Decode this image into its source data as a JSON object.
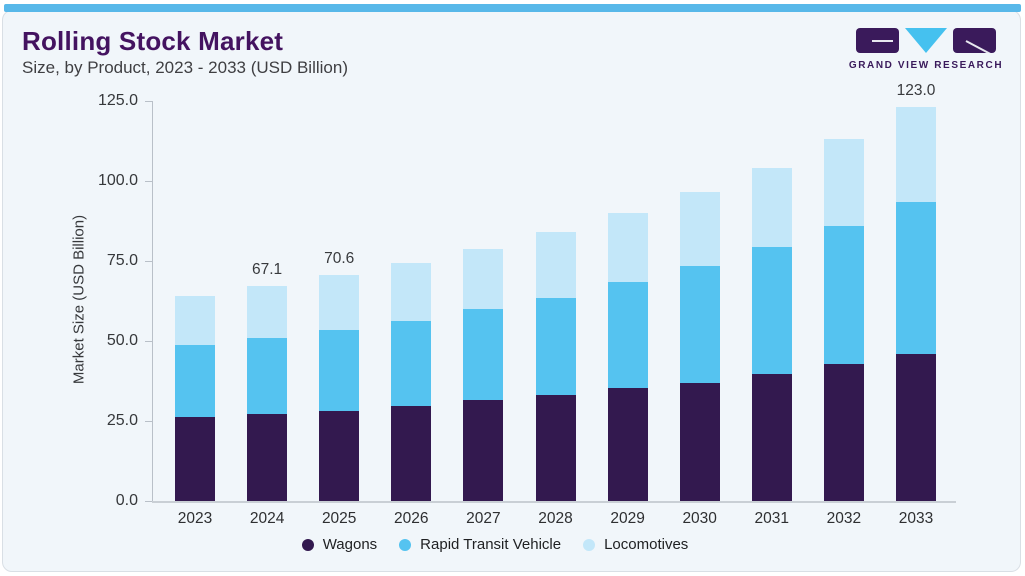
{
  "header": {
    "title": "Rolling Stock Market",
    "subtitle": "Size, by Product, 2023 - 2033 (USD Billion)"
  },
  "logo": {
    "text": "GRAND VIEW RESEARCH"
  },
  "theme": {
    "top_bar": "#58b8e9",
    "card_background": "#f1f6fa",
    "card_border": "#d9dfe5",
    "title_color": "#441360",
    "text_color": "#36383b",
    "axis_color": "#b9c0c8"
  },
  "chart_data": {
    "type": "bar",
    "stacked": true,
    "title": "Rolling Stock Market Size, by Product, 2023 - 2033 (USD Billion)",
    "categories": [
      "2023",
      "2024",
      "2025",
      "2026",
      "2027",
      "2028",
      "2029",
      "2030",
      "2031",
      "2032",
      "2033"
    ],
    "series": [
      {
        "name": "Wagons",
        "color": "#33194f",
        "values": [
          26.4,
          27.3,
          28.2,
          29.8,
          31.6,
          33.0,
          35.2,
          37.0,
          39.6,
          42.8,
          45.9
        ]
      },
      {
        "name": "Rapid Transit Vehicle",
        "color": "#55c3f0",
        "values": [
          22.3,
          23.6,
          25.2,
          26.5,
          28.3,
          30.3,
          33.3,
          36.3,
          39.7,
          43.1,
          47.5
        ]
      },
      {
        "name": "Locomotives",
        "color": "#c3e7f9",
        "values": [
          15.4,
          16.2,
          17.2,
          18.2,
          18.9,
          20.8,
          21.4,
          23.2,
          24.8,
          27.2,
          29.6
        ]
      }
    ],
    "totals": [
      64.1,
      67.1,
      70.6,
      74.5,
      78.8,
      84.1,
      89.9,
      96.5,
      104.1,
      113.1,
      123.0
    ],
    "bar_labels": [
      "",
      "67.1",
      "70.6",
      "",
      "",
      "",
      "",
      "",
      "",
      "",
      "123.0"
    ],
    "xlabel": "",
    "ylabel": "Market Size (USD Billion)",
    "ylim": [
      0,
      125
    ],
    "ytick_step": 25,
    "ytick_labels": [
      "0.0",
      "25.0",
      "50.0",
      "75.0",
      "100.0",
      "125.0"
    ],
    "grid": false,
    "legend_position": "bottom"
  }
}
